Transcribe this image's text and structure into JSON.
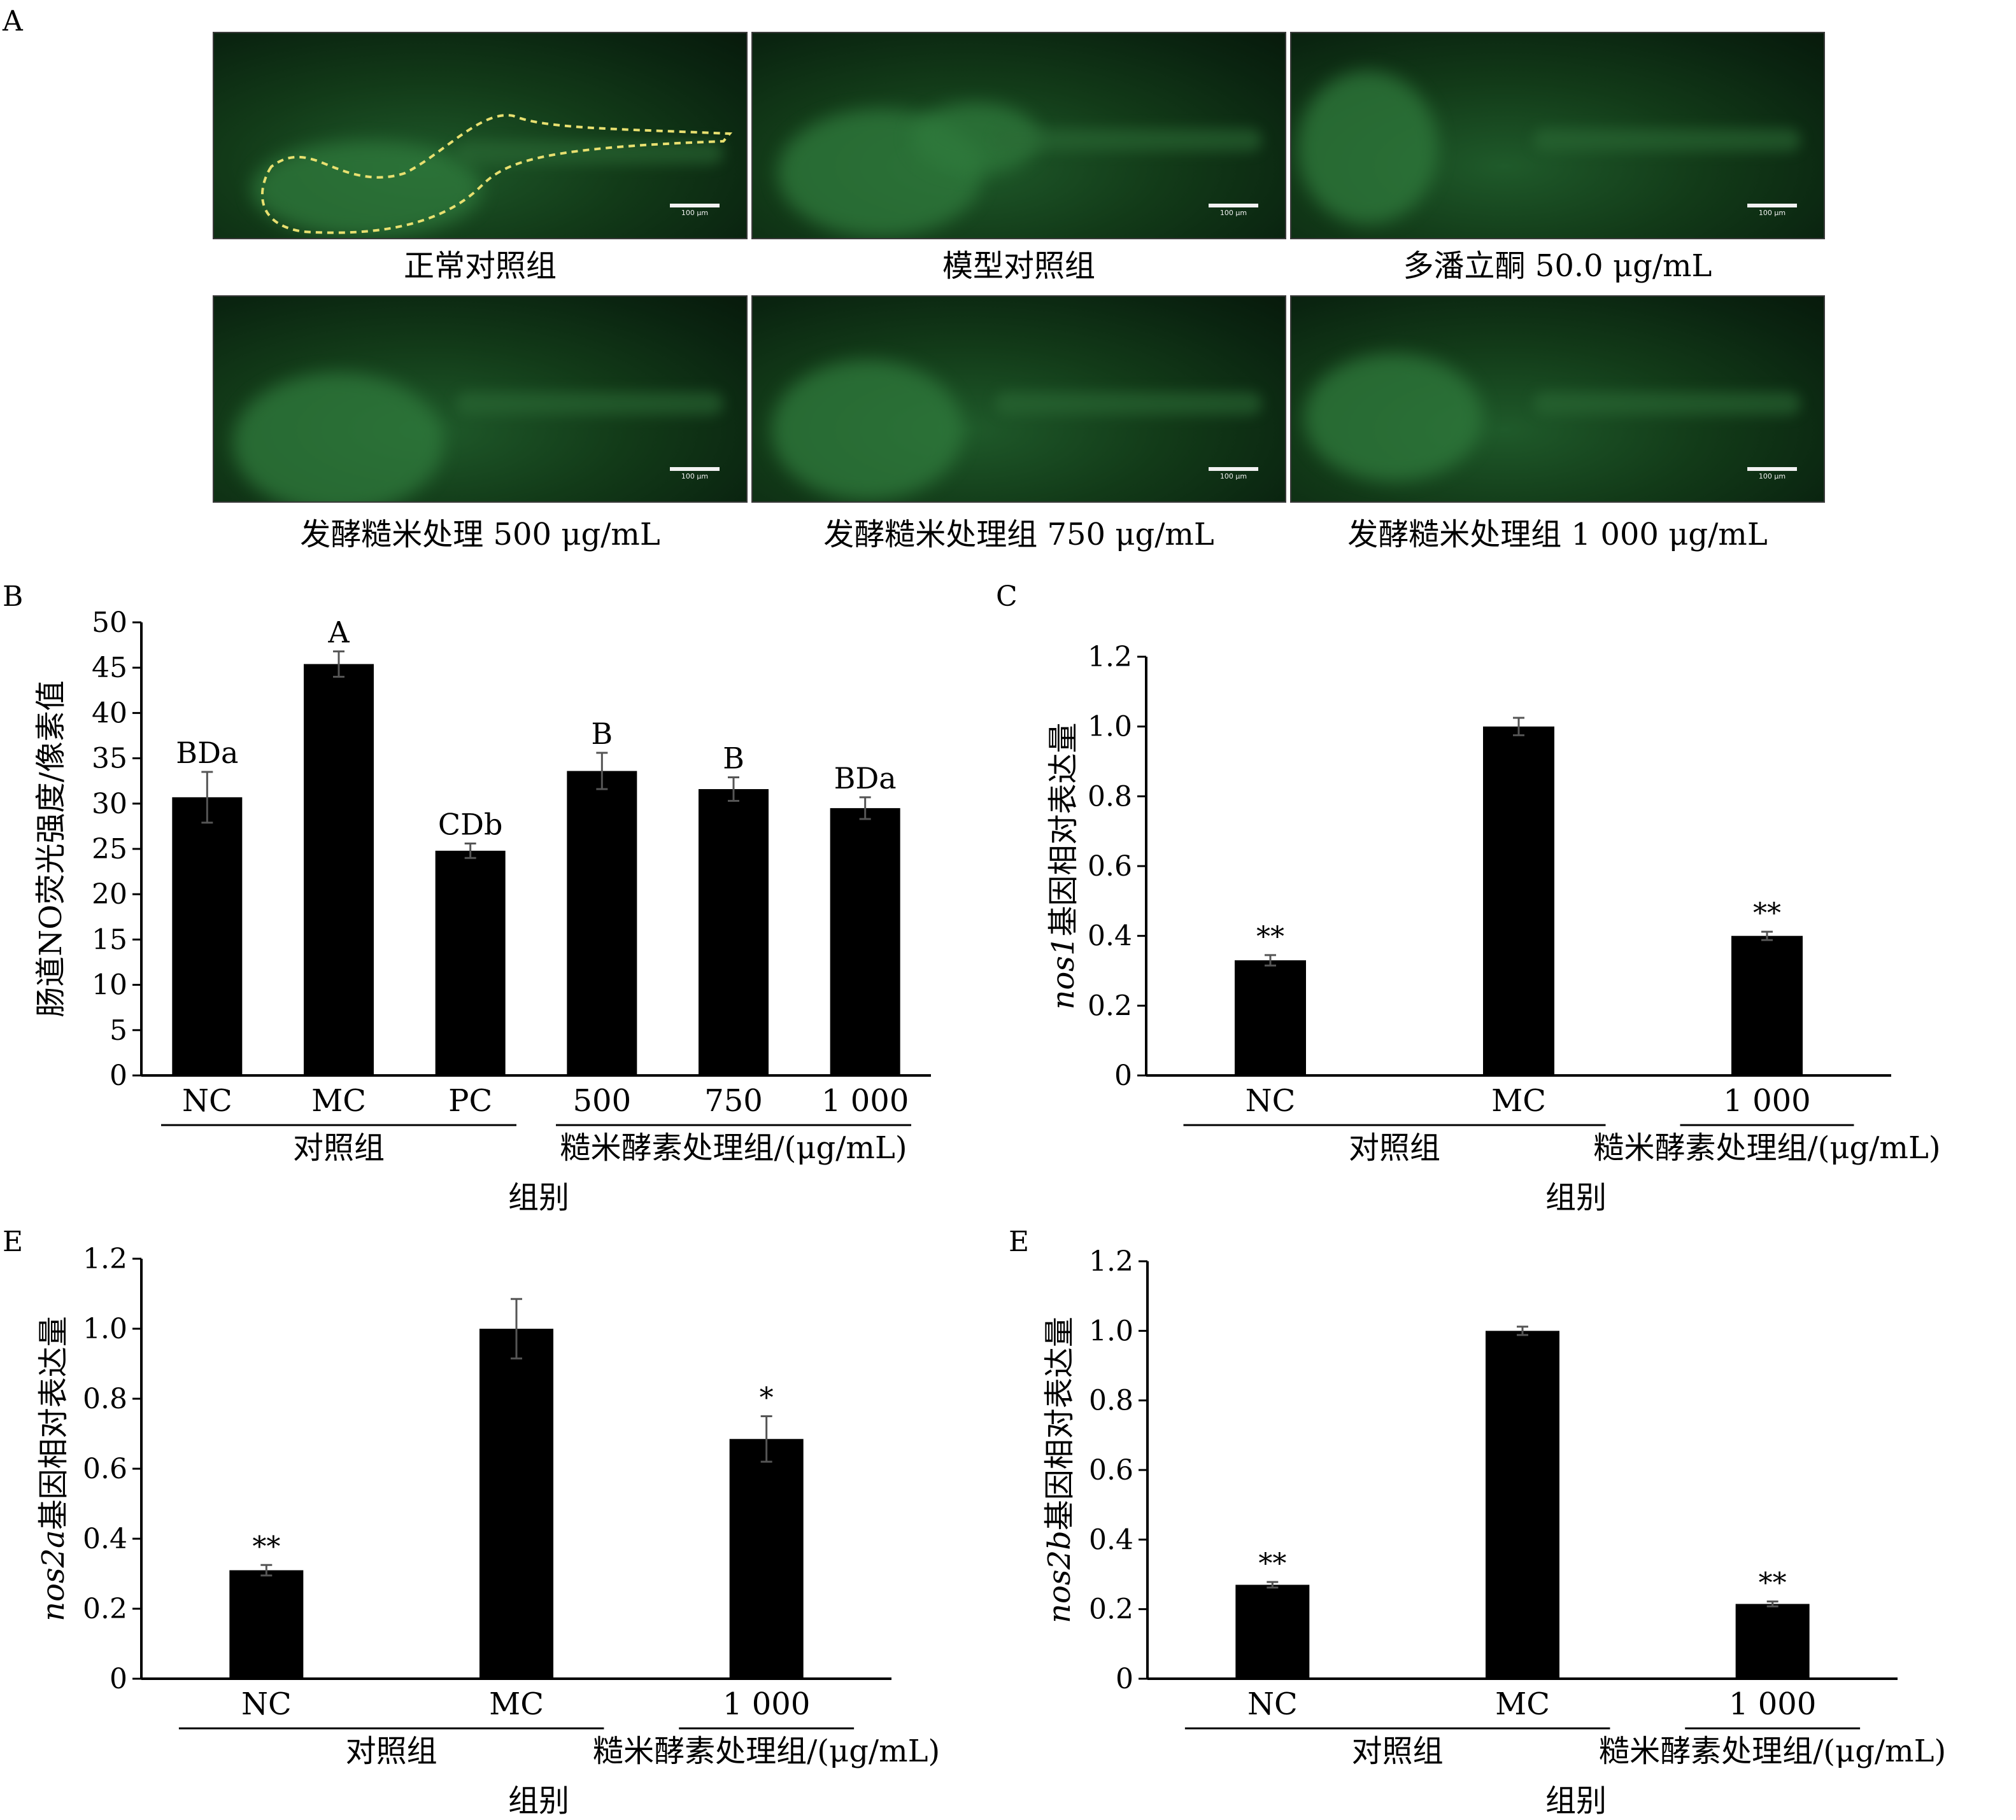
{
  "panel_a": {
    "letter": "A",
    "scale_label": "100 μm",
    "images": [
      {
        "caption": "正常对照组",
        "icon": "zebrafish-fluorescence-image"
      },
      {
        "caption": "模型对照组",
        "icon": "zebrafish-fluorescence-image"
      },
      {
        "caption": "多潘立酮 50.0 μg/mL",
        "icon": "zebrafish-fluorescence-image"
      },
      {
        "caption": "发酵糙米处理 500 μg/mL",
        "icon": "zebrafish-fluorescence-image"
      },
      {
        "caption": "发酵糙米处理组 750 μg/mL",
        "icon": "zebrafish-fluorescence-image"
      },
      {
        "caption": "发酵糙米处理组 1 000 μg/mL",
        "icon": "zebrafish-fluorescence-image"
      }
    ],
    "colors": {
      "fluorescence": "#2f7a3c",
      "background": "#0a2410",
      "outline": "#e8e070"
    }
  },
  "chart_data": [
    {
      "letter": "B",
      "type": "bar",
      "categories": [
        "NC",
        "MC",
        "PC",
        "500",
        "750",
        "1 000"
      ],
      "values": [
        30.7,
        45.4,
        24.8,
        33.6,
        31.6,
        29.5
      ],
      "errors": [
        2.8,
        1.4,
        0.8,
        2.0,
        1.3,
        1.2
      ],
      "annotations": [
        "BDa",
        "A",
        "CDb",
        "B",
        "B",
        "BDa"
      ],
      "ylabel": "肠道NO荧光强度/像素值",
      "xlabel": "组别",
      "group_labels": [
        {
          "text": "对照组",
          "categories": [
            "NC",
            "MC",
            "PC"
          ]
        },
        {
          "text": "糙米酵素处理组/(μg/mL)",
          "categories": [
            "500",
            "750",
            "1 000"
          ]
        }
      ],
      "ylim": [
        0,
        50
      ],
      "yticks": [
        "0",
        "5",
        "10",
        "15",
        "20",
        "25",
        "30",
        "35",
        "40",
        "45",
        "50"
      ],
      "grid": false,
      "bar_color": "#000000"
    },
    {
      "letter": "C",
      "type": "bar",
      "categories": [
        "NC",
        "MC",
        "1 000"
      ],
      "values": [
        0.33,
        1.0,
        0.4
      ],
      "errors": [
        0.015,
        0.025,
        0.012
      ],
      "annotations": [
        "**",
        "",
        "**"
      ],
      "ylabel_italic": "nos1",
      "ylabel": "基因相对表达量",
      "xlabel": "组别",
      "group_labels": [
        {
          "text": "对照组",
          "categories": [
            "NC",
            "MC"
          ]
        },
        {
          "text": "糙米酵素处理组/(μg/mL)",
          "categories": [
            "1 000"
          ]
        }
      ],
      "ylim": [
        0,
        1.2
      ],
      "yticks": [
        "0",
        "0.2",
        "0.4",
        "0.6",
        "0.8",
        "1.0",
        "1.2"
      ],
      "grid": false,
      "bar_color": "#000000"
    },
    {
      "letter": "E",
      "type": "bar",
      "categories": [
        "NC",
        "MC",
        "1 000"
      ],
      "values": [
        0.31,
        1.0,
        0.685
      ],
      "errors": [
        0.015,
        0.085,
        0.065
      ],
      "annotations": [
        "**",
        "",
        "*"
      ],
      "ylabel_italic": "nos2a",
      "ylabel": "基因相对表达量",
      "xlabel": "组别",
      "group_labels": [
        {
          "text": "对照组",
          "categories": [
            "NC",
            "MC"
          ]
        },
        {
          "text": "糙米酵素处理组/(μg/mL)",
          "categories": [
            "1 000"
          ]
        }
      ],
      "ylim": [
        0,
        1.2
      ],
      "yticks": [
        "0",
        "0.2",
        "0.4",
        "0.6",
        "0.8",
        "1.0",
        "1.2"
      ],
      "grid": false,
      "bar_color": "#000000"
    },
    {
      "letter": "E",
      "type": "bar",
      "categories": [
        "NC",
        "MC",
        "1 000"
      ],
      "values": [
        0.27,
        1.0,
        0.215
      ],
      "errors": [
        0.008,
        0.012,
        0.007
      ],
      "annotations": [
        "**",
        "",
        "**"
      ],
      "ylabel_italic": "nos2b",
      "ylabel": "基因相对表达量",
      "xlabel": "组别",
      "group_labels": [
        {
          "text": "对照组",
          "categories": [
            "NC",
            "MC"
          ]
        },
        {
          "text": "糙米酵素处理组/(μg/mL)",
          "categories": [
            "1 000"
          ]
        }
      ],
      "ylim": [
        0,
        1.2
      ],
      "yticks": [
        "0",
        "0.2",
        "0.4",
        "0.6",
        "0.8",
        "1.0",
        "1.2"
      ],
      "grid": false,
      "bar_color": "#000000"
    }
  ]
}
